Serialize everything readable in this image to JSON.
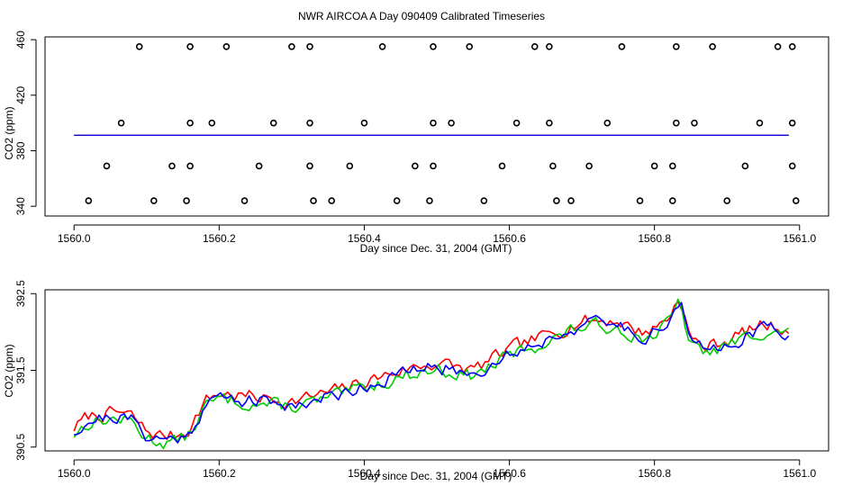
{
  "title": "NWR AIRCOA A  Day 090409  Calibrated Timeseries",
  "chart_data": [
    {
      "type": "scatter",
      "name": "top-panel",
      "xlabel": "Day since Dec. 31, 2004 (GMT)",
      "ylabel": "CO2 (ppm)",
      "xlim": [
        1559.96,
        1561.04
      ],
      "ylim": [
        333,
        462
      ],
      "xticks": [
        1560.0,
        1560.2,
        1560.4,
        1560.6,
        1560.8,
        1561.0
      ],
      "xtick_labels": [
        "1560.0",
        "1560.2",
        "1560.4",
        "1560.6",
        "1560.8",
        "1561.0"
      ],
      "yticks": [
        340,
        380,
        420,
        460
      ],
      "ytick_labels": [
        "340",
        "380",
        "420",
        "460"
      ],
      "grid": false,
      "points": [
        {
          "x": 1560.09,
          "y": 455
        },
        {
          "x": 1560.16,
          "y": 455
        },
        {
          "x": 1560.21,
          "y": 455
        },
        {
          "x": 1560.3,
          "y": 455
        },
        {
          "x": 1560.325,
          "y": 455
        },
        {
          "x": 1560.425,
          "y": 455
        },
        {
          "x": 1560.495,
          "y": 455
        },
        {
          "x": 1560.545,
          "y": 455
        },
        {
          "x": 1560.635,
          "y": 455
        },
        {
          "x": 1560.655,
          "y": 455
        },
        {
          "x": 1560.755,
          "y": 455
        },
        {
          "x": 1560.83,
          "y": 455
        },
        {
          "x": 1560.88,
          "y": 455
        },
        {
          "x": 1560.97,
          "y": 455
        },
        {
          "x": 1560.99,
          "y": 455
        },
        {
          "x": 1560.065,
          "y": 400
        },
        {
          "x": 1560.16,
          "y": 400
        },
        {
          "x": 1560.19,
          "y": 400
        },
        {
          "x": 1560.275,
          "y": 400
        },
        {
          "x": 1560.325,
          "y": 400
        },
        {
          "x": 1560.4,
          "y": 400
        },
        {
          "x": 1560.495,
          "y": 400
        },
        {
          "x": 1560.52,
          "y": 400
        },
        {
          "x": 1560.61,
          "y": 400
        },
        {
          "x": 1560.655,
          "y": 400
        },
        {
          "x": 1560.735,
          "y": 400
        },
        {
          "x": 1560.83,
          "y": 400
        },
        {
          "x": 1560.855,
          "y": 400
        },
        {
          "x": 1560.945,
          "y": 400
        },
        {
          "x": 1560.99,
          "y": 400
        },
        {
          "x": 1560.045,
          "y": 369
        },
        {
          "x": 1560.135,
          "y": 369
        },
        {
          "x": 1560.16,
          "y": 369
        },
        {
          "x": 1560.255,
          "y": 369
        },
        {
          "x": 1560.325,
          "y": 369
        },
        {
          "x": 1560.38,
          "y": 369
        },
        {
          "x": 1560.47,
          "y": 369
        },
        {
          "x": 1560.495,
          "y": 369
        },
        {
          "x": 1560.59,
          "y": 369
        },
        {
          "x": 1560.66,
          "y": 369
        },
        {
          "x": 1560.71,
          "y": 369
        },
        {
          "x": 1560.8,
          "y": 369
        },
        {
          "x": 1560.825,
          "y": 369
        },
        {
          "x": 1560.925,
          "y": 369
        },
        {
          "x": 1560.99,
          "y": 369
        },
        {
          "x": 1560.02,
          "y": 344
        },
        {
          "x": 1560.11,
          "y": 344
        },
        {
          "x": 1560.155,
          "y": 344
        },
        {
          "x": 1560.235,
          "y": 344
        },
        {
          "x": 1560.33,
          "y": 344
        },
        {
          "x": 1560.355,
          "y": 344
        },
        {
          "x": 1560.445,
          "y": 344
        },
        {
          "x": 1560.49,
          "y": 344
        },
        {
          "x": 1560.565,
          "y": 344
        },
        {
          "x": 1560.665,
          "y": 344
        },
        {
          "x": 1560.685,
          "y": 344
        },
        {
          "x": 1560.78,
          "y": 344
        },
        {
          "x": 1560.825,
          "y": 344
        },
        {
          "x": 1560.9,
          "y": 344
        },
        {
          "x": 1560.995,
          "y": 344
        }
      ],
      "baseline": {
        "x": [
          1560.0,
          1560.985
        ],
        "y": [
          390.5,
          391.8
        ]
      },
      "colors": {
        "points": "#000000",
        "red": "#ff0000",
        "green": "#00cc00",
        "blue": "#0000ff"
      }
    },
    {
      "type": "line",
      "name": "bottom-panel",
      "xlabel": "Day since Dec. 31, 2004 (GMT)",
      "ylabel": "CO2 (ppm)",
      "xlim": [
        1559.96,
        1561.04
      ],
      "ylim": [
        390.45,
        392.55
      ],
      "xticks": [
        1560.0,
        1560.2,
        1560.4,
        1560.6,
        1560.8,
        1561.0
      ],
      "xtick_labels": [
        "1560.0",
        "1560.2",
        "1560.4",
        "1560.6",
        "1560.8",
        "1561.0"
      ],
      "yticks": [
        390.5,
        391.5,
        392.5
      ],
      "ytick_labels": [
        "390.5",
        "391.5",
        "392.5"
      ],
      "grid": false,
      "anchors": {
        "x": [
          1560.0,
          1560.02,
          1560.04,
          1560.06,
          1560.08,
          1560.1,
          1560.12,
          1560.14,
          1560.16,
          1560.18,
          1560.2,
          1560.25,
          1560.3,
          1560.35,
          1560.4,
          1560.45,
          1560.5,
          1560.55,
          1560.6,
          1560.65,
          1560.7,
          1560.75,
          1560.78,
          1560.8,
          1560.82,
          1560.835,
          1560.85,
          1560.87,
          1560.9,
          1560.95,
          1560.985
        ],
        "y": [
          390.7,
          390.85,
          390.88,
          390.9,
          390.85,
          390.65,
          390.6,
          390.6,
          390.7,
          391.05,
          391.15,
          391.1,
          391.05,
          391.15,
          391.3,
          391.45,
          391.55,
          391.45,
          391.72,
          391.9,
          392.1,
          392.1,
          391.95,
          392.0,
          392.15,
          392.42,
          391.85,
          391.75,
          391.85,
          392.05,
          392.0
        ]
      },
      "series": [
        {
          "color": "#ff0000",
          "offset": 0.05,
          "seed": 7
        },
        {
          "color": "#00cc00",
          "offset": -0.03,
          "seed": 13
        },
        {
          "color": "#0000ff",
          "offset": 0.0,
          "seed": 21
        }
      ]
    }
  ]
}
